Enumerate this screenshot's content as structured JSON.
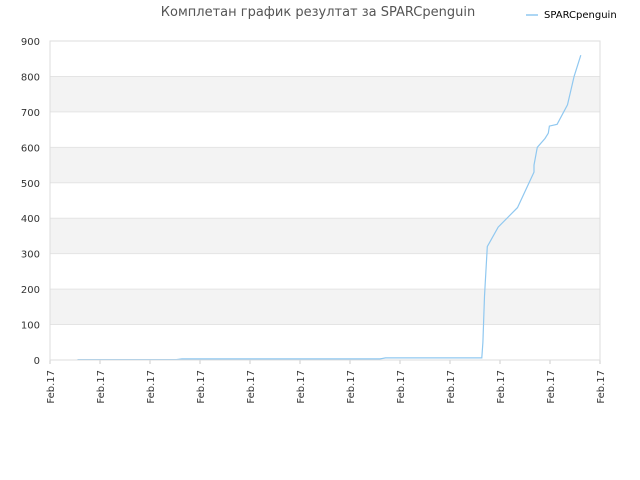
{
  "chart_data": {
    "type": "line",
    "title": "Комплетан график резултат за SPARCpenguin",
    "xlabel": "",
    "ylabel": "",
    "ylim": [
      0,
      900
    ],
    "yticks": [
      0,
      100,
      200,
      300,
      400,
      500,
      600,
      700,
      800,
      900
    ],
    "xtick_labels": [
      "Feb.17",
      "Feb.17",
      "Feb.17",
      "Feb.17",
      "Feb.17",
      "Feb.17",
      "Feb.17",
      "Feb.17",
      "Feb.17",
      "Feb.17",
      "Feb.17",
      "Feb.17"
    ],
    "xlim": [
      0,
      1
    ],
    "grid": true,
    "legend_position": "top-right",
    "series": [
      {
        "name": "SPARCpenguin",
        "color": "#90c8f0",
        "x": [
          0.05,
          0.23,
          0.24,
          0.6,
          0.61,
          0.785,
          0.787,
          0.79,
          0.795,
          0.815,
          0.85,
          0.88,
          0.88,
          0.886,
          0.9,
          0.906,
          0.908,
          0.922,
          0.941,
          0.953,
          0.965
        ],
        "y": [
          1,
          1,
          3,
          3,
          6,
          6,
          50,
          180,
          320,
          375,
          430,
          530,
          550,
          600,
          625,
          640,
          660,
          665,
          720,
          800,
          860
        ]
      }
    ]
  }
}
